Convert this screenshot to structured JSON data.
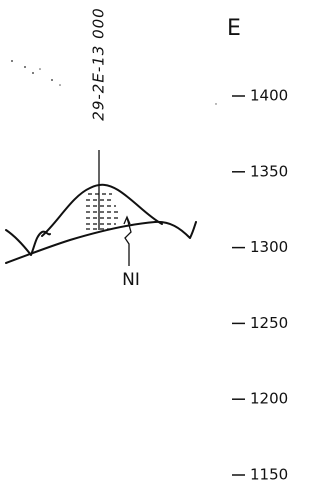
{
  "header": {
    "title": "E"
  },
  "labels": {
    "section": "29-2E-13 000",
    "formation": "NI"
  },
  "axis": {
    "ticks": [
      1400,
      1350,
      1300,
      1250,
      1200,
      1150
    ]
  }
}
